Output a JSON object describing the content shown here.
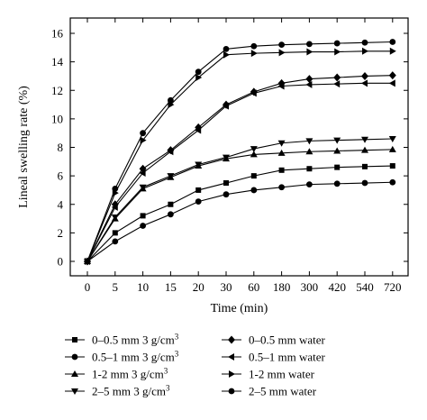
{
  "chart_data": {
    "type": "line",
    "title": "",
    "xlabel": "Time (min)",
    "ylabel": "Lineal swelling rate (%)",
    "x": [
      "0",
      "5",
      "10",
      "15",
      "20",
      "30",
      "60",
      "180",
      "300",
      "420",
      "540",
      "720"
    ],
    "ylim": [
      0,
      16
    ],
    "yticks": [
      "0",
      "2",
      "4",
      "6",
      "8",
      "10",
      "12",
      "14",
      "16"
    ],
    "grid": false,
    "legend_position": "bottom",
    "series": [
      {
        "name": "0–0.5 mm 3 g/cm",
        "sup": "3",
        "marker": "square",
        "values": [
          0,
          2.0,
          3.2,
          4.0,
          5.0,
          5.5,
          6.0,
          6.4,
          6.5,
          6.6,
          6.65,
          6.7
        ]
      },
      {
        "name": "0.5–1 mm 3 g/cm",
        "sup": "3",
        "marker": "circle",
        "values": [
          0,
          1.4,
          2.5,
          3.3,
          4.2,
          4.7,
          5.0,
          5.2,
          5.4,
          5.45,
          5.5,
          5.55
        ]
      },
      {
        "name": "1-2 mm 3 g/cm",
        "sup": "3",
        "marker": "triangle-up",
        "values": [
          0,
          3.0,
          5.1,
          5.9,
          6.7,
          7.2,
          7.5,
          7.6,
          7.7,
          7.75,
          7.8,
          7.85
        ]
      },
      {
        "name": "2–5 mm 3 g/cm",
        "sup": "3",
        "marker": "triangle-down",
        "values": [
          0,
          3.1,
          5.2,
          6.0,
          6.8,
          7.3,
          7.9,
          8.3,
          8.45,
          8.5,
          8.55,
          8.6
        ]
      },
      {
        "name": "0–0.5 mm water",
        "sup": "",
        "marker": "diamond",
        "values": [
          0,
          4.0,
          6.5,
          7.8,
          9.4,
          11.0,
          11.9,
          12.5,
          12.8,
          12.9,
          13.0,
          13.05
        ]
      },
      {
        "name": "0.5–1 mm water",
        "sup": "",
        "marker": "triangle-left",
        "values": [
          0,
          3.8,
          6.2,
          7.7,
          9.2,
          10.9,
          11.8,
          12.3,
          12.4,
          12.45,
          12.5,
          12.5
        ]
      },
      {
        "name": "1-2 mm water",
        "sup": "",
        "marker": "triangle-right",
        "values": [
          0,
          4.8,
          8.5,
          11.0,
          12.9,
          14.5,
          14.6,
          14.65,
          14.7,
          14.7,
          14.75,
          14.75
        ]
      },
      {
        "name": "2–5 mm water",
        "sup": "",
        "marker": "circle",
        "values": [
          0,
          5.1,
          9.0,
          11.3,
          13.3,
          14.9,
          15.1,
          15.2,
          15.25,
          15.3,
          15.35,
          15.4
        ]
      }
    ]
  }
}
